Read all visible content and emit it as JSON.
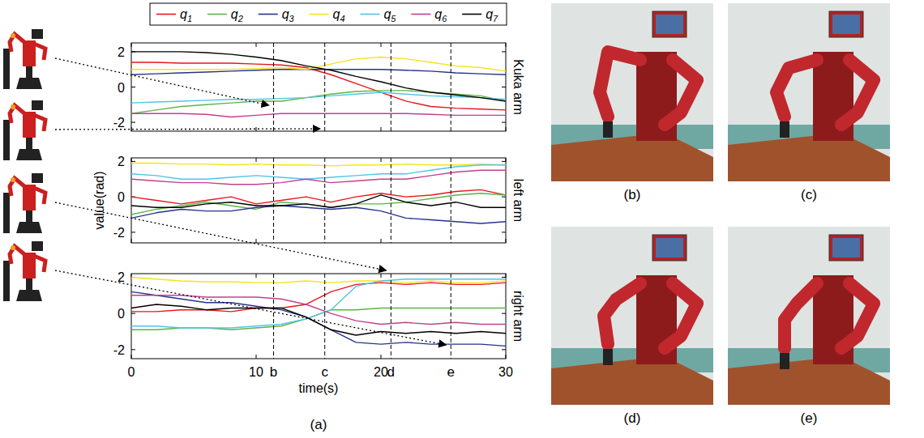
{
  "chart_data": [
    {
      "type": "line",
      "title": "Kuka arm",
      "legend": "top",
      "tick_labels": "y",
      "x": [
        0,
        2,
        4,
        6,
        8,
        10,
        12,
        14,
        16,
        18,
        20,
        22,
        24,
        26,
        28,
        30
      ],
      "xlim": [
        0,
        30
      ],
      "xticks": [
        0,
        10,
        20,
        30
      ],
      "ylim": [
        -2.5,
        2.5
      ],
      "yticks": [
        -2,
        0,
        2
      ],
      "series": [
        {
          "name": "q1",
          "color": "#e8141c",
          "values": [
            1.4,
            1.4,
            1.35,
            1.35,
            1.35,
            1.3,
            1.25,
            1.1,
            0.7,
            0.2,
            -0.3,
            -0.8,
            -1.1,
            -1.2,
            -1.25,
            -1.3
          ]
        },
        {
          "name": "q2",
          "color": "#5cb546",
          "values": [
            -1.5,
            -1.3,
            -1.1,
            -1.0,
            -0.9,
            -0.8,
            -0.8,
            -0.6,
            -0.4,
            -0.25,
            -0.2,
            -0.2,
            -0.3,
            -0.4,
            -0.5,
            -0.8
          ]
        },
        {
          "name": "q3",
          "color": "#26338c",
          "values": [
            0.7,
            0.75,
            0.8,
            0.85,
            0.9,
            0.95,
            1.0,
            1.0,
            1.0,
            1.0,
            1.0,
            0.95,
            0.9,
            0.8,
            0.75,
            0.7
          ]
        },
        {
          "name": "q4",
          "color": "#f5e418",
          "values": [
            1.0,
            1.0,
            1.0,
            1.0,
            1.0,
            1.05,
            1.1,
            1.0,
            1.3,
            1.6,
            1.7,
            1.6,
            1.4,
            1.2,
            1.1,
            0.9
          ]
        },
        {
          "name": "q5",
          "color": "#52c3e6",
          "values": [
            -0.9,
            -0.85,
            -0.8,
            -0.75,
            -0.7,
            -0.7,
            -0.65,
            -0.6,
            -0.5,
            -0.4,
            -0.3,
            -0.4,
            -0.5,
            -0.55,
            -0.6,
            -0.7
          ]
        },
        {
          "name": "q6",
          "color": "#c2408f",
          "values": [
            -1.5,
            -1.5,
            -1.5,
            -1.55,
            -1.7,
            -1.6,
            -1.5,
            -1.5,
            -1.5,
            -1.5,
            -1.5,
            -1.5,
            -1.55,
            -1.6,
            -1.6,
            -1.6
          ]
        },
        {
          "name": "q7",
          "color": "#000000",
          "values": [
            2.0,
            2.0,
            2.0,
            1.95,
            1.85,
            1.7,
            1.5,
            1.2,
            0.95,
            0.6,
            0.3,
            -0.05,
            -0.3,
            -0.45,
            -0.6,
            -0.8
          ]
        }
      ]
    },
    {
      "type": "line",
      "title": "left arm",
      "tick_labels": "y",
      "y_label": "value(rad)",
      "x": [
        0,
        2,
        4,
        6,
        8,
        10,
        12,
        14,
        16,
        18,
        20,
        22,
        24,
        26,
        28,
        30
      ],
      "xlim": [
        0,
        30
      ],
      "xticks": [
        0,
        10,
        20,
        30
      ],
      "ylim": [
        -2.6,
        2.2
      ],
      "yticks": [
        -2,
        0,
        2
      ],
      "series": [
        {
          "name": "q1",
          "color": "#e8141c",
          "values": [
            0.0,
            -0.2,
            -0.4,
            -0.2,
            0.0,
            -0.4,
            -0.2,
            0.0,
            -0.3,
            0.0,
            0.2,
            0.0,
            0.1,
            0.3,
            0.4,
            0.1
          ]
        },
        {
          "name": "q2",
          "color": "#5cb546",
          "values": [
            -1.0,
            -0.7,
            -0.5,
            -0.3,
            -0.5,
            -0.7,
            -0.3,
            -0.4,
            -0.6,
            -0.4,
            -0.4,
            -0.3,
            -0.1,
            0.1,
            0.2,
            0.1
          ]
        },
        {
          "name": "q3",
          "color": "#26338c",
          "values": [
            -1.2,
            -0.9,
            -0.7,
            -0.8,
            -0.8,
            -0.6,
            -0.5,
            -0.6,
            -0.7,
            -0.6,
            -0.8,
            -1.2,
            -1.3,
            -1.4,
            -1.5,
            -1.4
          ]
        },
        {
          "name": "q4",
          "color": "#f5e418",
          "values": [
            1.9,
            1.9,
            1.85,
            1.85,
            1.8,
            1.85,
            1.8,
            1.8,
            1.75,
            1.8,
            1.8,
            1.85,
            1.8,
            1.8,
            1.85,
            1.8
          ]
        },
        {
          "name": "q5",
          "color": "#52c3e6",
          "values": [
            1.3,
            1.2,
            1.0,
            1.0,
            1.1,
            1.2,
            1.1,
            1.0,
            1.1,
            1.2,
            1.3,
            1.3,
            1.5,
            1.7,
            1.8,
            1.8
          ]
        },
        {
          "name": "q6",
          "color": "#c2408f",
          "values": [
            1.0,
            0.9,
            0.8,
            0.8,
            0.7,
            0.7,
            0.8,
            1.0,
            0.8,
            0.9,
            1.0,
            1.0,
            1.2,
            1.4,
            1.5,
            1.5
          ]
        },
        {
          "name": "q7",
          "color": "#000000",
          "values": [
            -0.5,
            -0.6,
            -0.6,
            -0.4,
            -0.3,
            -0.5,
            -0.5,
            -0.4,
            -0.6,
            -0.4,
            0.1,
            -0.3,
            -0.5,
            -0.3,
            -0.6,
            -0.6
          ]
        }
      ]
    },
    {
      "type": "line",
      "title": "right arm",
      "x_label": "time(s)",
      "x": [
        0,
        2,
        4,
        6,
        8,
        10,
        12,
        14,
        16,
        18,
        20,
        22,
        24,
        26,
        28,
        30
      ],
      "xlim": [
        0,
        30
      ],
      "xticks": [
        0,
        10,
        20,
        30
      ],
      "ylim": [
        -2.5,
        2.2
      ],
      "yticks": [
        -2,
        0,
        2
      ],
      "series": [
        {
          "name": "q1",
          "color": "#e8141c",
          "values": [
            0.1,
            0.1,
            0.2,
            0.2,
            0.1,
            0.3,
            0.3,
            0.5,
            1.2,
            1.6,
            1.7,
            1.6,
            1.7,
            1.6,
            1.6,
            1.7
          ]
        },
        {
          "name": "q2",
          "color": "#5cb546",
          "values": [
            -0.9,
            -0.9,
            -0.8,
            -0.8,
            -0.9,
            -0.8,
            -0.7,
            -0.3,
            0.2,
            0.2,
            0.3,
            0.3,
            0.3,
            0.3,
            0.3,
            0.3
          ]
        },
        {
          "name": "q3",
          "color": "#26338c",
          "values": [
            1.2,
            1.0,
            0.8,
            0.6,
            0.6,
            0.4,
            0.2,
            -0.2,
            -0.9,
            -1.6,
            -1.7,
            -1.6,
            -1.7,
            -1.7,
            -1.7,
            -1.8
          ]
        },
        {
          "name": "q4",
          "color": "#f5e418",
          "values": [
            2.0,
            1.9,
            1.8,
            1.75,
            1.75,
            1.7,
            1.7,
            1.8,
            1.7,
            1.8,
            1.8,
            1.7,
            1.8,
            1.7,
            1.7,
            1.8
          ]
        },
        {
          "name": "q5",
          "color": "#52c3e6",
          "values": [
            -0.7,
            -0.7,
            -0.8,
            -0.8,
            -0.8,
            -0.7,
            -0.6,
            -0.3,
            0.2,
            1.5,
            1.8,
            1.9,
            1.9,
            1.9,
            1.9,
            1.9
          ]
        },
        {
          "name": "q6",
          "color": "#c2408f",
          "values": [
            1.0,
            1.0,
            1.0,
            0.9,
            0.9,
            0.9,
            0.8,
            0.5,
            0.0,
            -0.4,
            -0.6,
            -0.5,
            -0.6,
            -0.5,
            -0.6,
            -0.6
          ]
        },
        {
          "name": "q7",
          "color": "#000000",
          "values": [
            0.3,
            0.5,
            0.4,
            0.2,
            0.3,
            0.3,
            0.3,
            -0.2,
            -0.9,
            -1.2,
            -1.0,
            -1.1,
            -1.0,
            -1.1,
            -1.0,
            -1.1
          ]
        }
      ]
    }
  ],
  "markers": [
    {
      "label": "b",
      "x": 11.4
    },
    {
      "label": "c",
      "x": 15.5
    },
    {
      "label": "d",
      "x": 20.8
    },
    {
      "label": "e",
      "x": 25.6
    }
  ],
  "figure": {
    "chart_label": "(a)",
    "photo_labels": [
      "(b)",
      "(c)",
      "(d)",
      "(e)"
    ]
  }
}
